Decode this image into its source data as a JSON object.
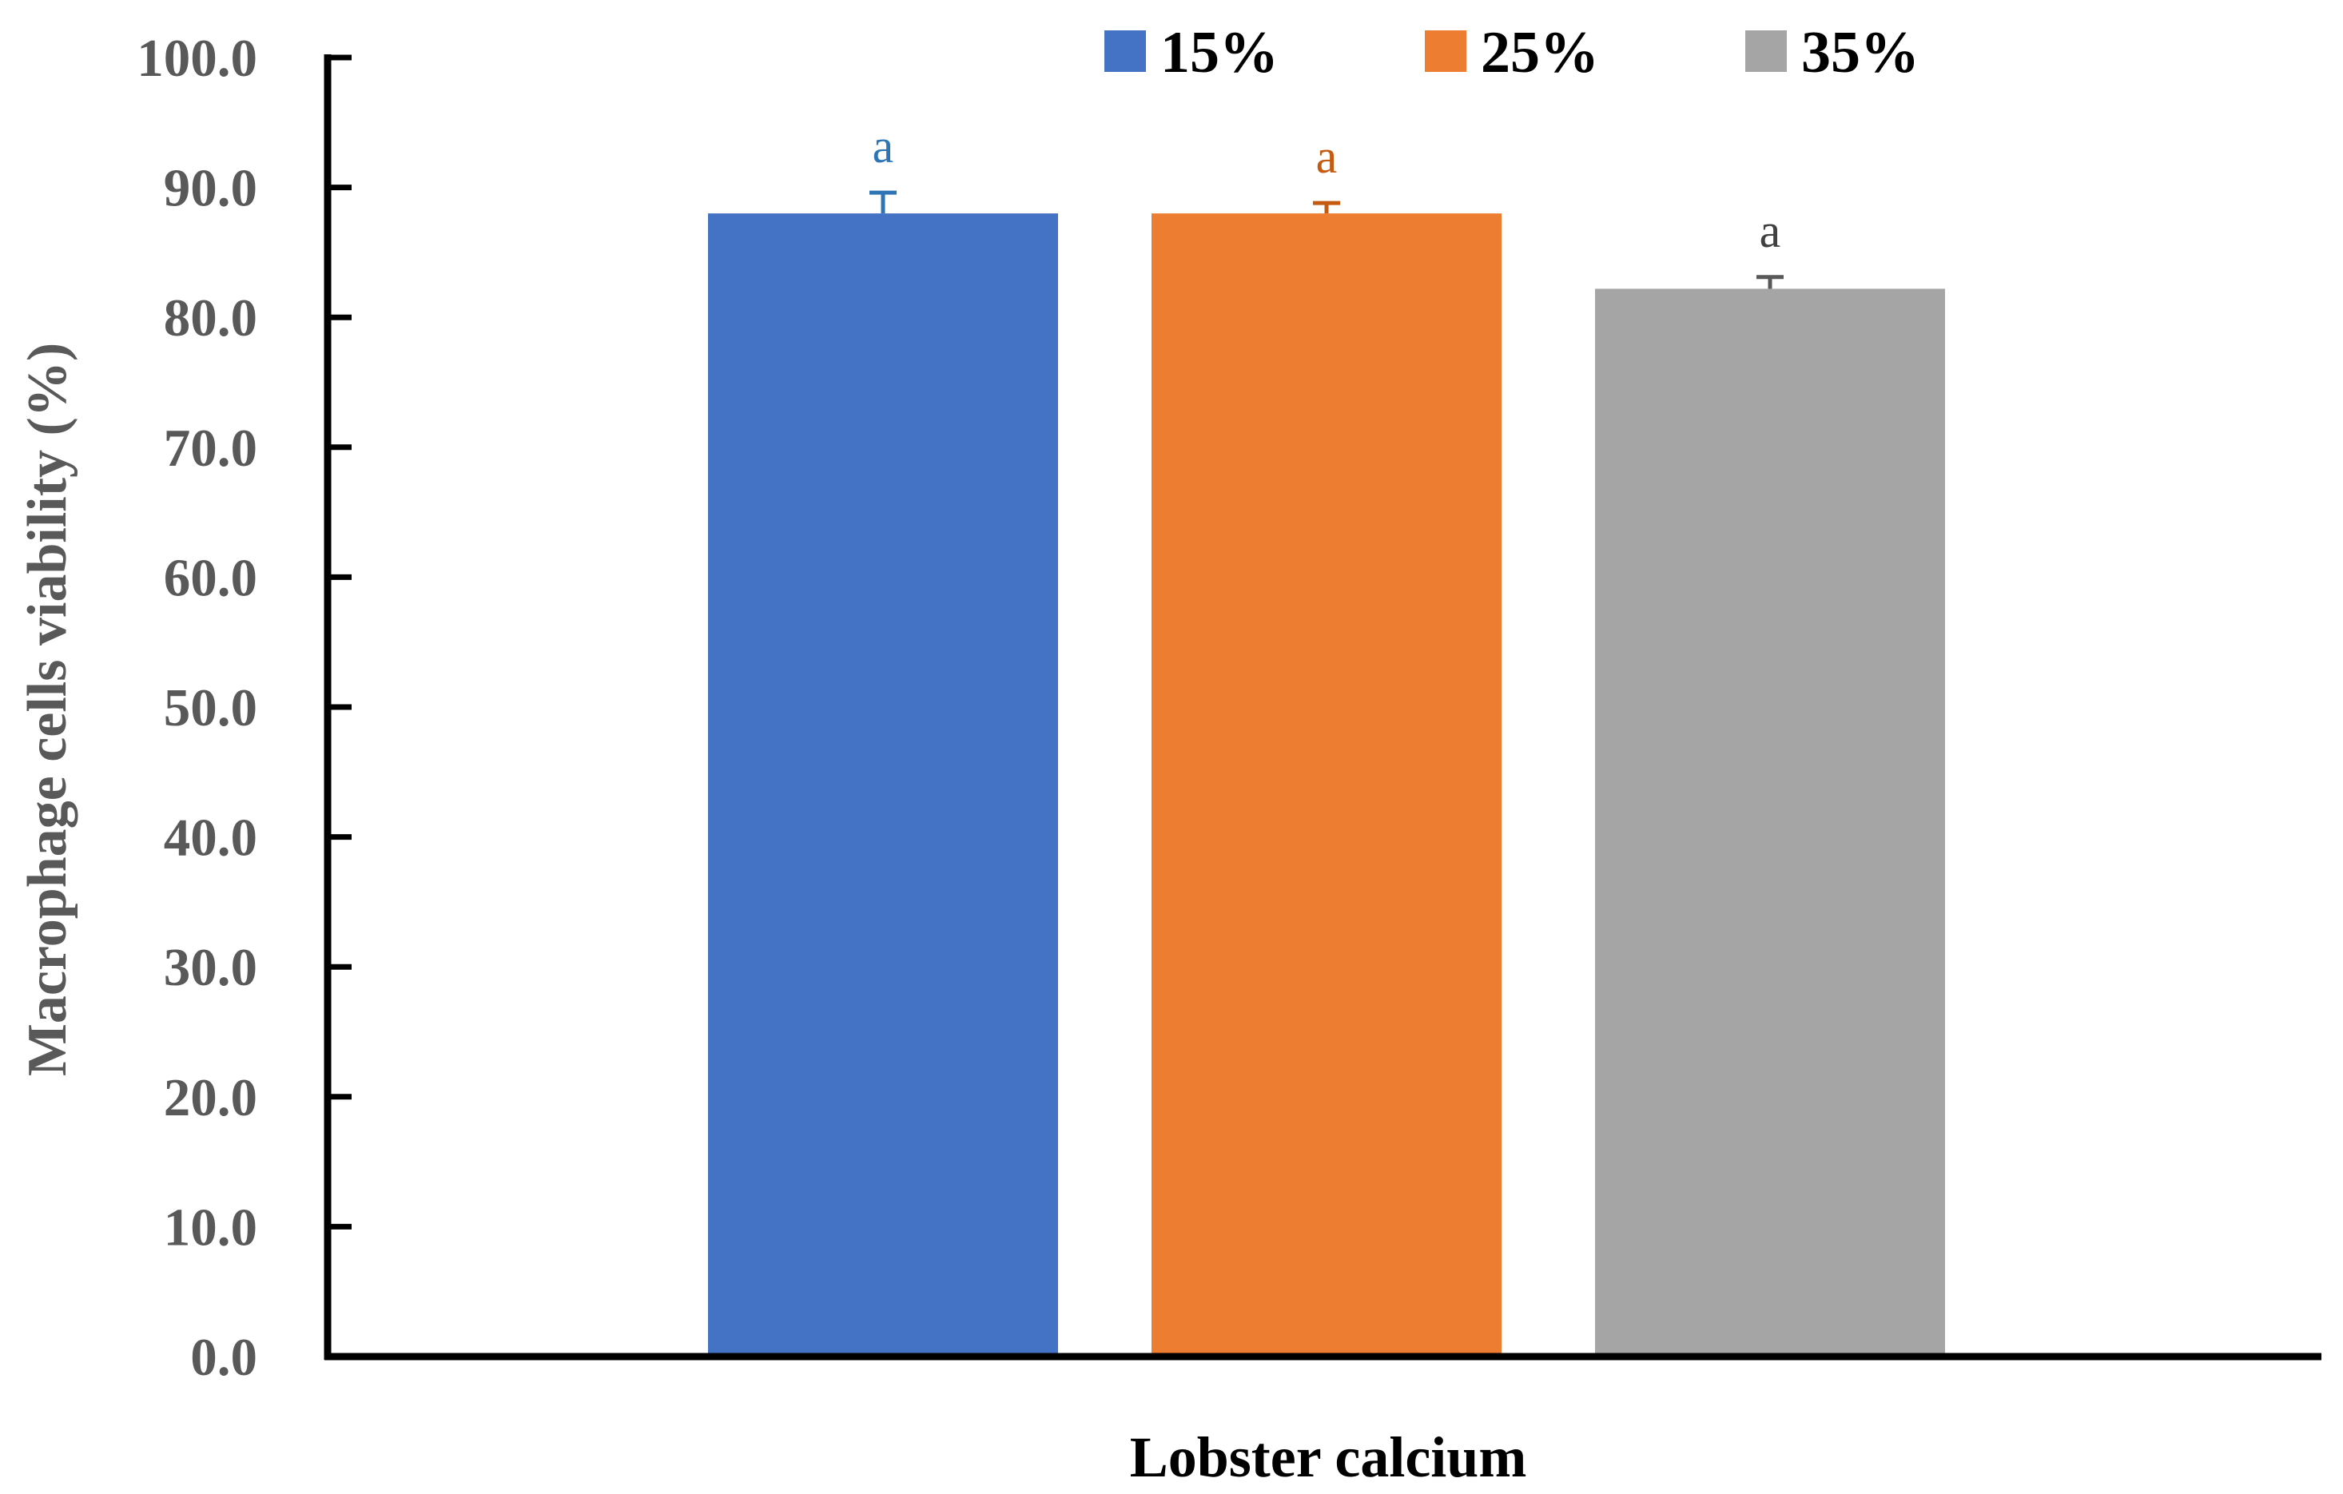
{
  "chart_data": {
    "type": "bar",
    "categories": [
      "Lobster calcium"
    ],
    "xlabel": "Lobster calcium",
    "ylabel": "Macrophage cells  viability  (%)",
    "ylim": [
      0,
      100
    ],
    "yticks": [
      "0.0",
      "10.0",
      "20.0",
      "30.0",
      "40.0",
      "50.0",
      "60.0",
      "70.0",
      "80.0",
      "90.0",
      "100.0"
    ],
    "grid": false,
    "legend_position": "top",
    "series": [
      {
        "name": "15%",
        "values": [
          88.0
        ],
        "error": [
          1.6
        ],
        "color": "#4472C4",
        "error_color": "#2E75B6",
        "label": "a",
        "label_color": "#2E75B6"
      },
      {
        "name": "25%",
        "values": [
          88.0
        ],
        "error": [
          0.8
        ],
        "color": "#ED7D31",
        "error_color": "#C55A11",
        "label": "a",
        "label_color": "#C55A11"
      },
      {
        "name": "35%",
        "values": [
          82.2
        ],
        "error": [
          0.9
        ],
        "color": "#A5A5A5",
        "error_color": "#595959",
        "label": "a",
        "label_color": "#404040"
      }
    ]
  }
}
